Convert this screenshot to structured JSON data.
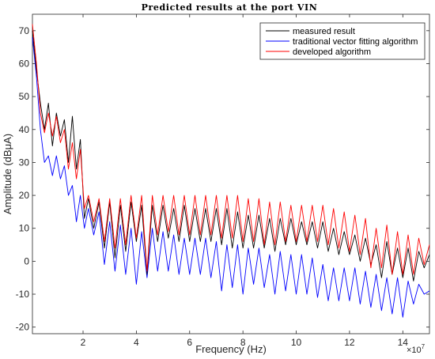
{
  "chart_data": {
    "type": "line",
    "title": "Predicted results at the port VIN",
    "xlabel": "Frequency  (Hz)",
    "ylabel": "Amplitude  (dBμA)",
    "x_exponent_label": "×10",
    "x_exponent_power": "7",
    "x_multiplier": 10000000,
    "xlim": [
      0.1,
      15.0
    ],
    "ylim": [
      -22,
      75
    ],
    "xticks": [
      2,
      4,
      6,
      8,
      10,
      12,
      14
    ],
    "yticks": [
      -20,
      -10,
      0,
      10,
      20,
      30,
      40,
      50,
      60,
      70
    ],
    "grid": false,
    "legend_position": "top-right",
    "series": [
      {
        "name": "measured result",
        "color": "#000000",
        "x": [
          0.1,
          0.25,
          0.4,
          0.55,
          0.7,
          0.85,
          1.0,
          1.15,
          1.3,
          1.45,
          1.6,
          1.75,
          1.9,
          2.05,
          2.2,
          2.4,
          2.6,
          2.8,
          3.0,
          3.2,
          3.4,
          3.6,
          3.8,
          4.0,
          4.2,
          4.4,
          4.6,
          4.8,
          5.0,
          5.2,
          5.4,
          5.6,
          5.8,
          6.0,
          6.2,
          6.4,
          6.6,
          6.8,
          7.0,
          7.2,
          7.4,
          7.6,
          7.8,
          8.0,
          8.2,
          8.4,
          8.6,
          8.8,
          9.0,
          9.2,
          9.4,
          9.6,
          9.8,
          10.0,
          10.2,
          10.4,
          10.6,
          10.8,
          11.0,
          11.2,
          11.4,
          11.6,
          11.8,
          12.0,
          12.2,
          12.4,
          12.6,
          12.8,
          13.0,
          13.2,
          13.4,
          13.6,
          13.8,
          14.0,
          14.2,
          14.4,
          14.6,
          14.8,
          15.0
        ],
        "y": [
          70,
          58,
          48,
          40,
          48,
          35,
          45,
          38,
          43,
          30,
          44,
          28,
          37,
          13,
          19,
          10,
          18,
          4,
          18,
          1,
          17,
          3,
          18,
          6,
          17,
          -4,
          17,
          6,
          17,
          7,
          16,
          6,
          17,
          6,
          16,
          6,
          16,
          6,
          16,
          5,
          16,
          4,
          15,
          4,
          14,
          4,
          14,
          4,
          13,
          3,
          13,
          5,
          13,
          5,
          12,
          5,
          12,
          4,
          12,
          3,
          10,
          2,
          9,
          2,
          8,
          0,
          7,
          -1,
          5,
          -5,
          6,
          -4,
          4,
          -5,
          4,
          -6,
          3,
          -2,
          2
        ]
      },
      {
        "name": "traditional vector fitting algorithm",
        "color": "#0000ff",
        "x": [
          0.1,
          0.25,
          0.4,
          0.55,
          0.7,
          0.85,
          1.0,
          1.15,
          1.3,
          1.45,
          1.6,
          1.75,
          1.9,
          2.05,
          2.2,
          2.4,
          2.6,
          2.8,
          3.0,
          3.2,
          3.4,
          3.6,
          3.8,
          4.0,
          4.2,
          4.4,
          4.6,
          4.8,
          5.0,
          5.2,
          5.4,
          5.6,
          5.8,
          6.0,
          6.2,
          6.4,
          6.6,
          6.8,
          7.0,
          7.2,
          7.4,
          7.6,
          7.8,
          8.0,
          8.2,
          8.4,
          8.6,
          8.8,
          9.0,
          9.2,
          9.4,
          9.6,
          9.8,
          10.0,
          10.2,
          10.4,
          10.6,
          10.8,
          11.0,
          11.2,
          11.4,
          11.6,
          11.8,
          12.0,
          12.2,
          12.4,
          12.6,
          12.8,
          13.0,
          13.2,
          13.4,
          13.6,
          13.8,
          14.0,
          14.2,
          14.4,
          14.6,
          14.8,
          15.0
        ],
        "y": [
          68,
          56,
          40,
          30,
          32,
          26,
          32,
          25,
          29,
          20,
          23,
          12,
          20,
          10,
          16,
          8,
          15,
          -1,
          12,
          -3,
          11,
          -4,
          10,
          -7,
          9,
          -5,
          10,
          -3,
          9,
          -3,
          8,
          -4,
          7,
          -4,
          7,
          -4,
          7,
          -5,
          6,
          -9,
          5,
          -8,
          5,
          -10,
          4,
          -7,
          4,
          -8,
          2,
          -10,
          3,
          -9,
          2,
          -10,
          2,
          -10,
          1,
          -11,
          -1,
          -12,
          -2,
          -12,
          -2,
          -12,
          -2,
          -13,
          -3,
          -14,
          -4,
          -15,
          -5,
          -16,
          -5,
          -17,
          -6,
          -13,
          -7,
          -10,
          -9
        ]
      },
      {
        "name": "developed algorithm",
        "color": "#ff0000",
        "x": [
          0.1,
          0.25,
          0.4,
          0.55,
          0.7,
          0.85,
          1.0,
          1.15,
          1.3,
          1.45,
          1.6,
          1.75,
          1.9,
          2.05,
          2.2,
          2.4,
          2.6,
          2.8,
          3.0,
          3.2,
          3.4,
          3.6,
          3.8,
          4.0,
          4.2,
          4.4,
          4.6,
          4.8,
          5.0,
          5.2,
          5.4,
          5.6,
          5.8,
          6.0,
          6.2,
          6.4,
          6.6,
          6.8,
          7.0,
          7.2,
          7.4,
          7.6,
          7.8,
          8.0,
          8.2,
          8.4,
          8.6,
          8.8,
          9.0,
          9.2,
          9.4,
          9.6,
          9.8,
          10.0,
          10.2,
          10.4,
          10.6,
          10.8,
          11.0,
          11.2,
          11.4,
          11.6,
          11.8,
          12.0,
          12.2,
          12.4,
          12.6,
          12.8,
          13.0,
          13.2,
          13.4,
          13.6,
          13.8,
          14.0,
          14.2,
          14.4,
          14.6,
          14.8,
          15.0
        ],
        "y": [
          72,
          60,
          45,
          39,
          45,
          38,
          44,
          36,
          40,
          28,
          36,
          25,
          34,
          16,
          20,
          12,
          19,
          6,
          19,
          4,
          19,
          5,
          20,
          7,
          20,
          -3,
          20,
          8,
          20,
          9,
          20,
          8,
          20,
          8,
          20,
          8,
          20,
          8,
          20,
          7,
          20,
          7,
          20,
          6,
          19,
          6,
          19,
          5,
          18,
          5,
          18,
          6,
          17,
          6,
          17,
          6,
          17,
          6,
          17,
          5,
          16,
          4,
          15,
          3,
          14,
          2,
          13,
          -2,
          10,
          -2,
          11,
          -4,
          9,
          -4,
          8,
          -4,
          7,
          -1,
          5
        ]
      }
    ]
  }
}
